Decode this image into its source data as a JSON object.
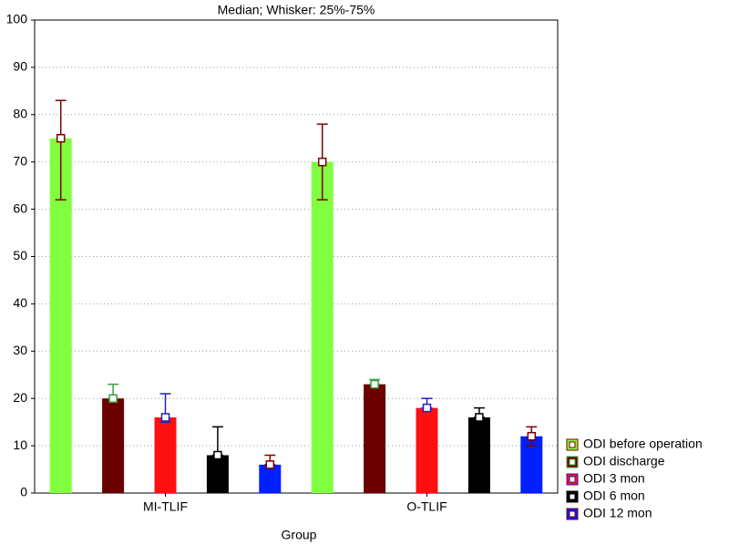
{
  "chart_data": {
    "type": "bar",
    "title": "Median; Whisker: 25%-75%",
    "x_label": "Group",
    "categories": [
      "MI-TLIF",
      "O-TLIF"
    ],
    "series": [
      {
        "name": "ODI before operation",
        "color": "#80ff40",
        "whisker_color": "#800000",
        "values": [
          75,
          70
        ],
        "lower": [
          62,
          62
        ],
        "upper": [
          83,
          78
        ]
      },
      {
        "name": "ODI discharge",
        "color": "#6b0000",
        "whisker_color": "#40a040",
        "values": [
          20,
          23
        ],
        "lower": [
          20,
          23
        ],
        "upper": [
          23,
          24
        ]
      },
      {
        "name": "ODI 3 mon",
        "color": "#ff1010",
        "whisker_color": "#2020c0",
        "values": [
          16,
          18
        ],
        "lower": [
          15,
          18
        ],
        "upper": [
          21,
          20
        ]
      },
      {
        "name": "ODI 6 mon",
        "color": "#000000",
        "whisker_color": "#000000",
        "values": [
          8,
          16
        ],
        "lower": [
          8,
          16
        ],
        "upper": [
          14,
          18
        ]
      },
      {
        "name": "ODI 12 mon",
        "color": "#0020ff",
        "whisker_color": "#800000",
        "values": [
          6,
          12
        ],
        "lower": [
          6,
          10
        ],
        "upper": [
          8,
          14
        ]
      }
    ],
    "ylim": [
      0,
      100
    ],
    "yticks": [
      0,
      10,
      20,
      30,
      40,
      50,
      60,
      70,
      80,
      90,
      100
    ],
    "grid": true,
    "legend": "lower right"
  }
}
